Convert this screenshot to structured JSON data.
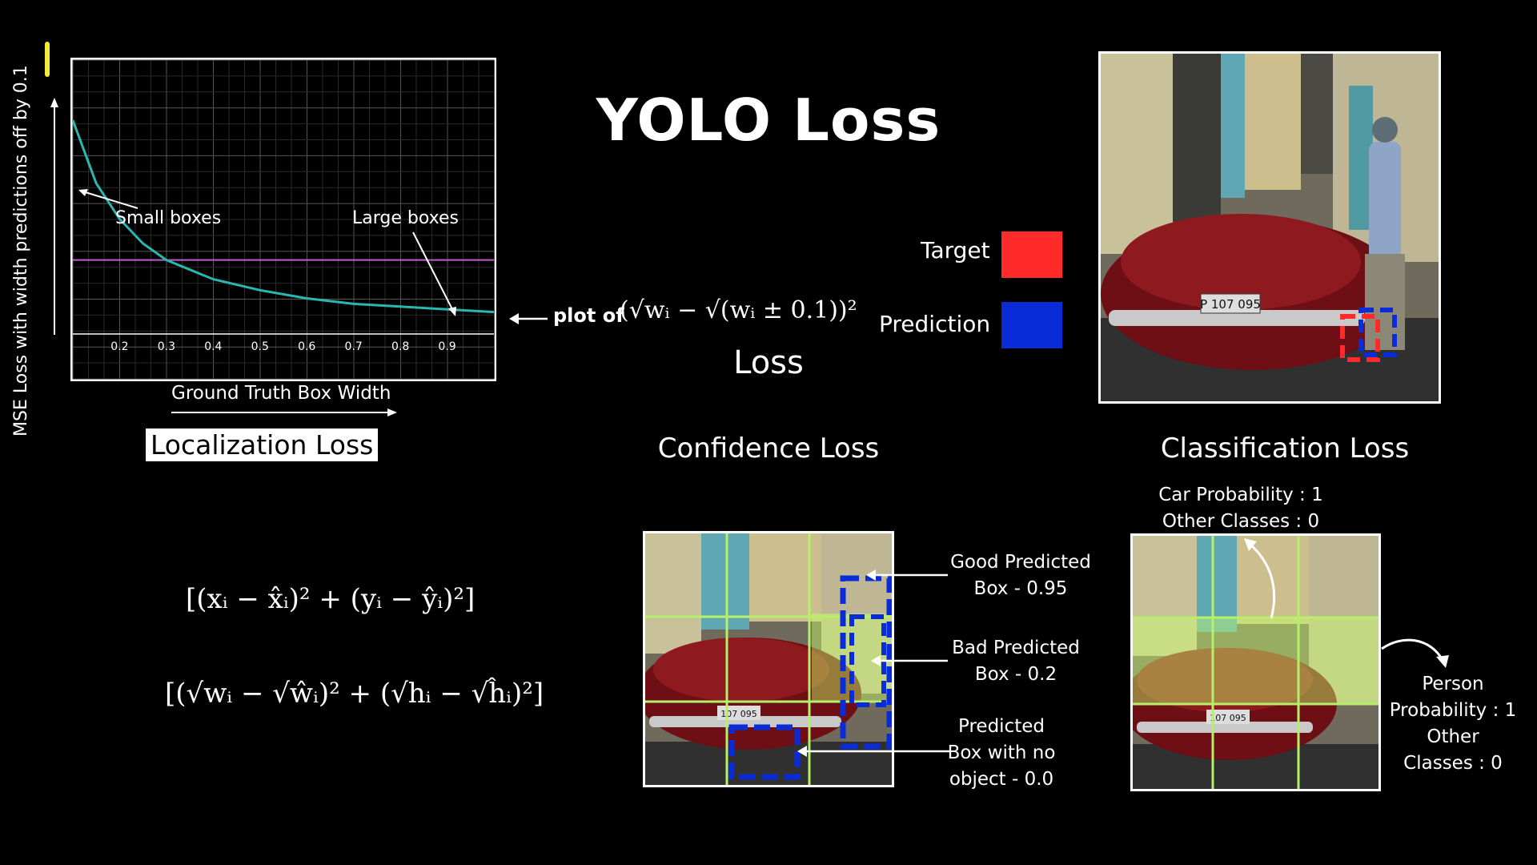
{
  "title": "YOLO Loss",
  "chart": {
    "ylabel": "MSE Loss with width predictions off by 0.1",
    "xlabel": "Ground Truth Box Width",
    "small_boxes": "Small boxes",
    "large_boxes": "Large boxes",
    "ticks": [
      "0.2",
      "0.3",
      "0.4",
      "0.5",
      "0.6",
      "0.7",
      "0.8",
      "0.9"
    ],
    "colors": {
      "curve": "#2ab7b0",
      "reference": "#c45bd0",
      "grid": "#444444"
    }
  },
  "chart_data": {
    "type": "line",
    "xlabel": "Ground Truth Box Width",
    "ylabel": "MSE Loss with width predictions off by 0.1",
    "x": [
      0.1,
      0.15,
      0.2,
      0.25,
      0.3,
      0.4,
      0.5,
      0.6,
      0.7,
      0.8,
      0.9,
      1.0
    ],
    "series": [
      {
        "values": [
          0.78,
          0.55,
          0.42,
          0.33,
          0.27,
          0.2,
          0.16,
          0.13,
          0.11,
          0.1,
          0.09,
          0.08
        ]
      }
    ],
    "reference_y": 0.27,
    "xlim": [
      0.1,
      1.0
    ],
    "ylim": [
      0,
      1.0
    ],
    "grid": true
  },
  "localization": {
    "label": "Localization Loss",
    "plot_of": "plot of",
    "plot_formula": "(√wᵢ − √(wᵢ ± 0.1))²",
    "loss_word": "Loss",
    "formula1": "[(xᵢ − x̂ᵢ)² + (yᵢ − ŷᵢ)²]",
    "formula2": "[(√wᵢ − √ŵᵢ)² + (√hᵢ − √ĥᵢ)²]"
  },
  "legend": {
    "target": "Target",
    "prediction": "Prediction",
    "target_color": "#ff2a2a",
    "prediction_color": "#0a2bd8"
  },
  "confidence": {
    "label": "Confidence Loss",
    "good_line1": "Good Predicted",
    "good_line2": "Box - 0.95",
    "bad_line1": "Bad Predicted",
    "bad_line2": "Box - 0.2",
    "none_line1": "Predicted",
    "none_line2": "Box with no",
    "none_line3": "object - 0.0"
  },
  "classification": {
    "label": "Classification Loss",
    "car_line1": "Car Probability : 1",
    "car_line2": "Other Classes : 0",
    "person_line1": "Person",
    "person_line2": "Probability : 1",
    "person_line3": "Other",
    "person_line4": "Classes : 0"
  },
  "photo": {
    "plate": "P 107 095",
    "plate_small": "107 095"
  }
}
